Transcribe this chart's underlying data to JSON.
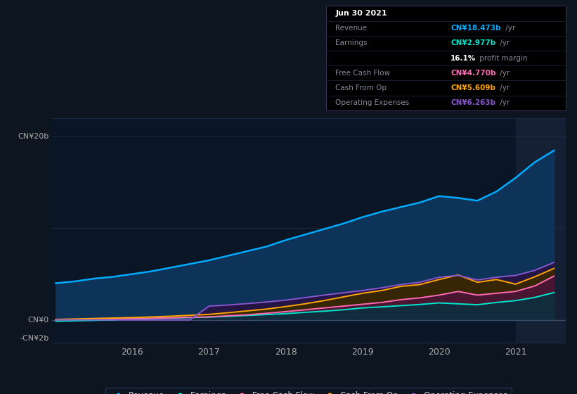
{
  "bg_color": "#0d1520",
  "plot_bg_color": "#0a1525",
  "grid_color": "#1a2a40",
  "ylabel_top": "CN¥20b",
  "ylabel_zero": "CN¥0",
  "ylabel_neg": "-CN¥2b",
  "ylim": [
    -2.5,
    22
  ],
  "years": [
    2015.0,
    2015.25,
    2015.5,
    2015.75,
    2016.0,
    2016.25,
    2016.5,
    2016.75,
    2017.0,
    2017.25,
    2017.5,
    2017.75,
    2018.0,
    2018.25,
    2018.5,
    2018.75,
    2019.0,
    2019.25,
    2019.5,
    2019.75,
    2020.0,
    2020.25,
    2020.5,
    2020.75,
    2021.0,
    2021.25,
    2021.5
  ],
  "revenue": [
    4.0,
    4.2,
    4.5,
    4.7,
    5.0,
    5.3,
    5.7,
    6.1,
    6.5,
    7.0,
    7.5,
    8.0,
    8.7,
    9.3,
    9.9,
    10.5,
    11.2,
    11.8,
    12.3,
    12.8,
    13.5,
    13.3,
    13.0,
    14.0,
    15.5,
    17.2,
    18.473
  ],
  "earnings": [
    -0.15,
    -0.1,
    -0.05,
    0.0,
    0.1,
    0.15,
    0.2,
    0.25,
    0.3,
    0.38,
    0.48,
    0.58,
    0.68,
    0.82,
    0.95,
    1.1,
    1.3,
    1.42,
    1.55,
    1.68,
    1.85,
    1.75,
    1.65,
    1.9,
    2.1,
    2.45,
    2.977
  ],
  "free_cash_flow": [
    0.02,
    0.05,
    0.08,
    0.1,
    0.13,
    0.18,
    0.22,
    0.28,
    0.32,
    0.45,
    0.55,
    0.72,
    0.9,
    1.1,
    1.3,
    1.5,
    1.7,
    1.9,
    2.2,
    2.4,
    2.7,
    3.1,
    2.7,
    2.9,
    3.1,
    3.7,
    4.77
  ],
  "cash_from_op": [
    0.05,
    0.1,
    0.15,
    0.2,
    0.25,
    0.32,
    0.4,
    0.5,
    0.6,
    0.78,
    0.98,
    1.18,
    1.45,
    1.75,
    2.1,
    2.5,
    2.9,
    3.2,
    3.65,
    3.85,
    4.4,
    4.9,
    4.1,
    4.4,
    3.9,
    4.7,
    5.609
  ],
  "oper_expenses": [
    0.0,
    0.0,
    0.0,
    0.0,
    0.0,
    0.0,
    0.0,
    0.0,
    1.5,
    1.62,
    1.78,
    1.95,
    2.15,
    2.42,
    2.7,
    2.95,
    3.2,
    3.5,
    3.85,
    4.1,
    4.65,
    4.85,
    4.35,
    4.65,
    4.85,
    5.4,
    6.263
  ],
  "revenue_color": "#00aaff",
  "revenue_fill": "#0d3358",
  "earnings_color": "#00e5cc",
  "earnings_fill": "#0a3040",
  "fcf_color": "#ff69b4",
  "fcf_fill": "#4a1535",
  "cfop_color": "#ffa500",
  "cfop_fill": "#3a2800",
  "opex_color": "#8855cc",
  "opex_fill": "#251545",
  "highlight_x_start": 2021.0,
  "highlight_color": "#152035",
  "xticks": [
    2016,
    2017,
    2018,
    2019,
    2020,
    2021
  ],
  "legend_labels": [
    "Revenue",
    "Earnings",
    "Free Cash Flow",
    "Cash From Op",
    "Operating Expenses"
  ],
  "legend_colors": [
    "#00aaff",
    "#00e5cc",
    "#ff69b4",
    "#ffa500",
    "#8855cc"
  ],
  "tooltip_date": "Jun 30 2021",
  "tooltip_rows": [
    {
      "label": "Revenue",
      "value": "CN¥18.473b",
      "suffix": " /yr",
      "color": "#00aaff"
    },
    {
      "label": "Earnings",
      "value": "CN¥2.977b",
      "suffix": " /yr",
      "color": "#00e5cc"
    },
    {
      "label": "",
      "value": "16.1%",
      "suffix": " profit margin",
      "color": "#ffffff"
    },
    {
      "label": "Free Cash Flow",
      "value": "CN¥4.770b",
      "suffix": " /yr",
      "color": "#ff69b4"
    },
    {
      "label": "Cash From Op",
      "value": "CN¥5.609b",
      "suffix": " /yr",
      "color": "#ffa500"
    },
    {
      "label": "Operating Expenses",
      "value": "CN¥6.263b",
      "suffix": " /yr",
      "color": "#8855cc"
    }
  ],
  "tooltip_bg": "#000000",
  "tooltip_border": "#333355",
  "label_color": "#888899",
  "axis_label_color": "#aaaaaa",
  "separator_color": "#1a2a40"
}
